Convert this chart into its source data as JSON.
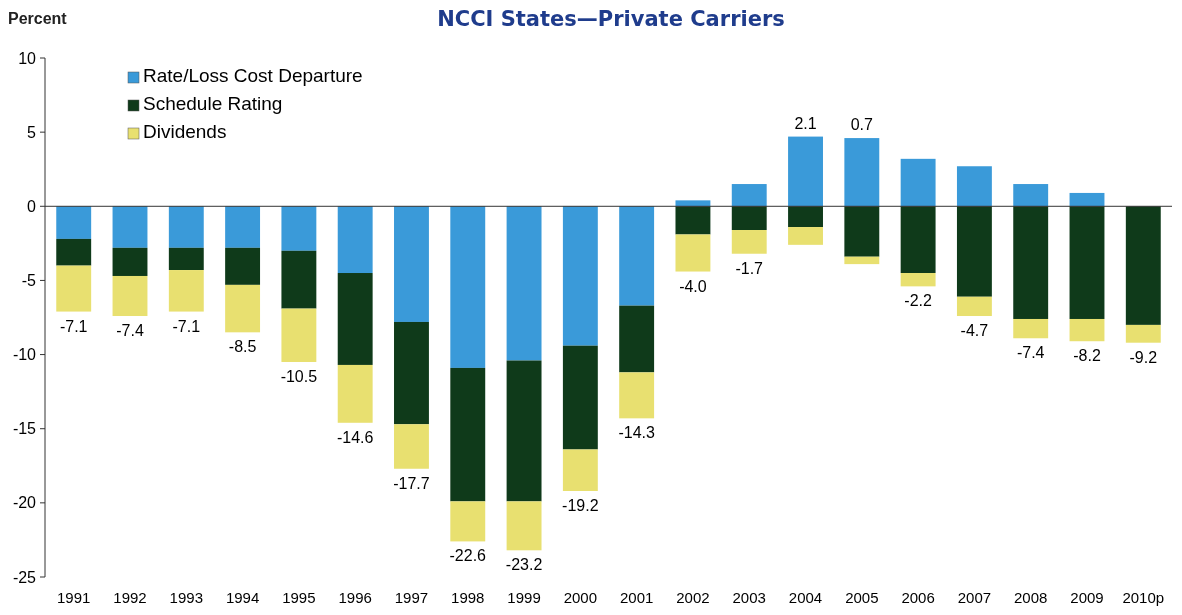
{
  "chart_data": {
    "type": "bar",
    "title": "NCCI States—Private Carriers",
    "ylabel": "Percent",
    "stacked": true,
    "legend": "top left",
    "categories": [
      "1991",
      "1992",
      "1993",
      "1994",
      "1995",
      "1996",
      "1997",
      "1998",
      "1999",
      "2000",
      "2001",
      "2002",
      "2003",
      "2004",
      "2005",
      "2006",
      "2007",
      "2008",
      "2009",
      "2010p"
    ],
    "series": [
      {
        "name": "Rate/Loss Cost Departure",
        "color": "#3a9ad9",
        "values": [
          -2.2,
          -2.8,
          -2.8,
          -2.8,
          -3.0,
          -4.5,
          -7.8,
          -10.9,
          -10.4,
          -9.4,
          -6.7,
          0.4,
          1.5,
          4.7,
          4.6,
          3.2,
          2.7,
          1.5,
          0.9,
          0
        ]
      },
      {
        "name": "Schedule Rating",
        "color": "#0f3a1a",
        "values": [
          -1.8,
          -1.9,
          -1.5,
          -2.5,
          -3.9,
          -6.2,
          -6.9,
          -9.0,
          -9.5,
          -7.0,
          -4.5,
          -1.9,
          -1.6,
          -1.4,
          -3.4,
          -4.5,
          -6.1,
          -7.6,
          -7.6,
          -8.0
        ]
      },
      {
        "name": "Dividends",
        "color": "#e8e070",
        "values": [
          -3.1,
          -2.7,
          -2.8,
          -3.2,
          -3.6,
          -3.9,
          -3.0,
          -2.7,
          -3.3,
          -2.8,
          -3.1,
          -2.5,
          -1.6,
          -1.2,
          -0.5,
          -0.9,
          -1.3,
          -1.3,
          -1.5,
          -1.2
        ]
      }
    ],
    "totals": [
      "-7.1",
      "-7.4",
      "-7.1",
      "-8.5",
      "-10.5",
      "-14.6",
      "-17.7",
      "-22.6",
      "-23.2",
      "-19.2",
      "-14.3",
      "-4.0",
      "-1.7",
      "2.1",
      "0.7",
      "-2.2",
      "-4.7",
      "-7.4",
      "-8.2",
      "-9.2"
    ],
    "ylim": [
      -25,
      10
    ],
    "yticks": [
      -25,
      -20,
      -15,
      -10,
      -5,
      0,
      5,
      10
    ]
  }
}
